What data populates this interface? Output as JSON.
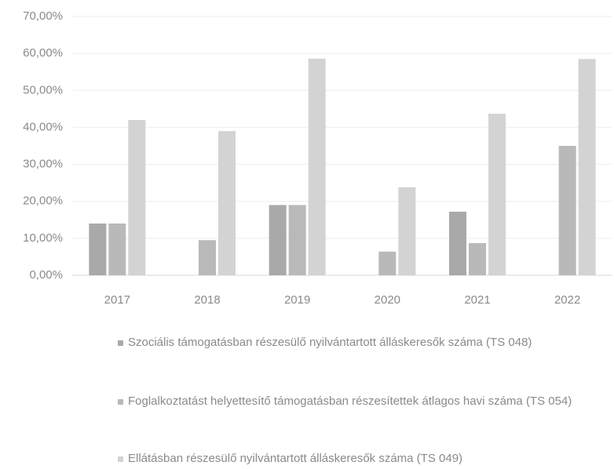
{
  "chart_data": {
    "type": "bar",
    "categories": [
      "2017",
      "2018",
      "2019",
      "2020",
      "2021",
      "2022"
    ],
    "series": [
      {
        "name": "Szociális támogatásban részesülő nyilvántartott álláskeresők száma (TS 048)",
        "color": "#a9a9a9",
        "values": [
          14,
          null,
          19,
          null,
          17.2,
          null
        ]
      },
      {
        "name": "Foglalkoztatást helyettesítő támogatásban részesítettek átlagos havi száma (TS 054)",
        "color": "#b9b9b9",
        "values": [
          14,
          9.5,
          19,
          6.4,
          8.7,
          35
        ]
      },
      {
        "name": "Ellátásban részesülő nyilvántartott álláskeresők száma (TS 049)",
        "color": "#d3d3d3",
        "values": [
          42,
          39,
          58.6,
          23.8,
          43.7,
          58.5
        ]
      }
    ],
    "ylim": [
      0,
      70
    ],
    "yticks": [
      {
        "value": 0,
        "label": "0,00%"
      },
      {
        "value": 10,
        "label": "10,00%"
      },
      {
        "value": 20,
        "label": "20,00%"
      },
      {
        "value": 30,
        "label": "30,00%"
      },
      {
        "value": 40,
        "label": "40,00%"
      },
      {
        "value": 50,
        "label": "50,00%"
      },
      {
        "value": 60,
        "label": "60,00%"
      },
      {
        "value": 70,
        "label": "70,00%"
      }
    ],
    "grid": true
  }
}
